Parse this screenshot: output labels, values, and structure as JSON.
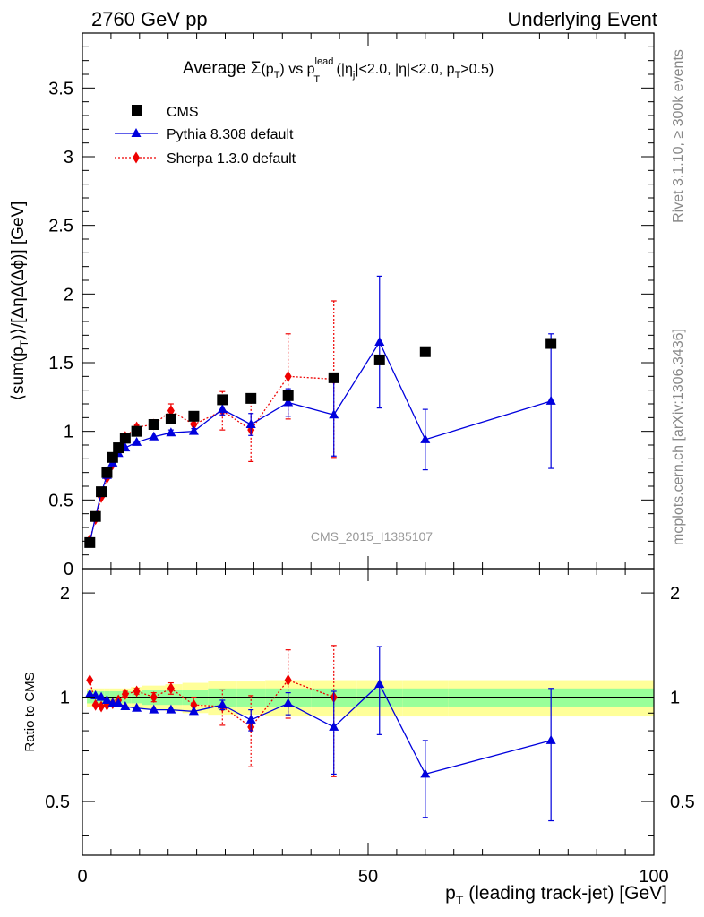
{
  "header": {
    "left": "2760 GeV pp",
    "right": "Underlying Event"
  },
  "title": {
    "prefix": "Average ",
    "sigma": "Σ",
    "pt_open": "(p",
    "t_sub": "T",
    "pt_close": ")",
    "vs": " vs p",
    "lead_sup": "lead",
    "t_sub2": "T",
    "cuts_a": " (|η",
    "j_sub": "j",
    "cuts_b": "|<2.0, |η|<2.0, p",
    "t_sub3": "T",
    "cuts_c": ">0.5)"
  },
  "side_labels": {
    "rivet": "Rivet 3.1.10, ≥ 300k events",
    "mcplots": "mcplots.cern.ch [arXiv:1306.3436]"
  },
  "watermark": "CMS_2015_I1385107",
  "axes": {
    "ylabel_main": "⟨sum(p_T)⟩/[ΔηΔ(Δϕ)] [GeV]",
    "ylabel_main_parts": {
      "a": "⟨sum(p",
      "sub": "T",
      "b": ")⟩/[ΔηΔ(Δϕ)] [GeV]"
    },
    "ylabel_ratio": "Ratio to CMS",
    "xlabel_parts": {
      "a": "p",
      "sub": "T",
      "b": " (leading track-jet) [GeV]"
    }
  },
  "legend": {
    "cms": "CMS",
    "pythia": "Pythia 8.308 default",
    "sherpa": "Sherpa 1.3.0 default"
  },
  "colors": {
    "cms": "#000000",
    "pythia": "#0000dd",
    "sherpa": "#ee0000",
    "band_inner": "#99ff99",
    "band_outer": "#ffff99",
    "watermark": "#999999",
    "side_text": "#888888"
  },
  "chart_data": [
    {
      "type": "scatter",
      "panel": "main",
      "xlim": [
        0,
        100
      ],
      "ylim": [
        0,
        3.9
      ],
      "yticks": [
        0,
        0.5,
        1,
        1.5,
        2,
        2.5,
        3,
        3.5
      ],
      "ytick_labels": [
        "0",
        "0.5",
        "1",
        "1.5",
        "2",
        "2.5",
        "3",
        "3.5"
      ],
      "series": [
        {
          "name": "CMS",
          "marker": "square",
          "x": [
            1.3,
            2.3,
            3.3,
            4.3,
            5.3,
            6.3,
            7.5,
            9.5,
            12.5,
            15.5,
            19.5,
            24.5,
            29.5,
            36,
            44,
            52,
            60,
            82
          ],
          "y": [
            0.19,
            0.38,
            0.56,
            0.7,
            0.81,
            0.88,
            0.95,
            1.0,
            1.05,
            1.09,
            1.11,
            1.23,
            1.24,
            1.26,
            1.39,
            1.52,
            1.58,
            1.64
          ]
        },
        {
          "name": "Pythia 8.308 default",
          "marker": "triangle",
          "x": [
            1.3,
            2.3,
            3.3,
            4.3,
            5.3,
            6.3,
            7.5,
            9.5,
            12.5,
            15.5,
            19.5,
            24.5,
            29.5,
            36,
            44,
            52,
            60,
            82
          ],
          "y": [
            0.19,
            0.38,
            0.55,
            0.68,
            0.77,
            0.84,
            0.88,
            0.92,
            0.96,
            0.99,
            1.0,
            1.16,
            1.05,
            1.21,
            1.12,
            1.65,
            0.94,
            1.22
          ],
          "err": [
            0.01,
            0.01,
            0.01,
            0.01,
            0.01,
            0.01,
            0.01,
            0.01,
            0.01,
            0.02,
            0.02,
            0.04,
            0.08,
            0.1,
            0.3,
            0.48,
            0.22,
            0.49
          ]
        },
        {
          "name": "Sherpa 1.3.0 default",
          "marker": "diamond",
          "x": [
            1.3,
            2.3,
            3.3,
            4.3,
            5.3,
            6.3,
            7.5,
            9.5,
            12.5,
            15.5,
            19.5,
            24.5,
            29.5,
            36,
            44
          ],
          "y": [
            0.21,
            0.36,
            0.52,
            0.66,
            0.76,
            0.86,
            0.96,
            1.03,
            1.05,
            1.15,
            1.05,
            1.15,
            1.01,
            1.4,
            1.38
          ],
          "err": [
            0.01,
            0.01,
            0.01,
            0.01,
            0.01,
            0.01,
            0.02,
            0.02,
            0.03,
            0.05,
            0.05,
            0.14,
            0.23,
            0.31,
            0.57
          ]
        }
      ]
    },
    {
      "type": "scatter",
      "panel": "ratio",
      "xlim": [
        0,
        100
      ],
      "ylim": [
        0.35,
        2.35
      ],
      "yticks": [
        0.5,
        1,
        2
      ],
      "ytick_labels": [
        "0.5",
        "1",
        "2"
      ],
      "xticks": [
        0,
        50,
        100
      ],
      "xtick_labels": [
        "0",
        "50",
        "100"
      ],
      "band": {
        "x_edges": [
          0.8,
          1.8,
          2.8,
          3.8,
          4.8,
          5.8,
          6.8,
          8.5,
          10.5,
          14.5,
          17.5,
          22,
          27,
          32,
          40,
          48,
          56,
          64,
          100
        ],
        "inner": [
          0.04,
          0.04,
          0.04,
          0.04,
          0.04,
          0.04,
          0.04,
          0.04,
          0.05,
          0.05,
          0.05,
          0.06,
          0.06,
          0.06,
          0.06,
          0.06,
          0.06,
          0.06
        ],
        "outer": [
          0.06,
          0.06,
          0.06,
          0.06,
          0.06,
          0.06,
          0.06,
          0.07,
          0.08,
          0.09,
          0.1,
          0.11,
          0.11,
          0.12,
          0.12,
          0.12,
          0.12,
          0.12
        ]
      },
      "series": [
        {
          "name": "Pythia 8.308 default",
          "marker": "triangle",
          "x": [
            1.3,
            2.3,
            3.3,
            4.3,
            5.3,
            6.3,
            7.5,
            9.5,
            12.5,
            15.5,
            19.5,
            24.5,
            29.5,
            36,
            44,
            52,
            60,
            82
          ],
          "y": [
            1.02,
            1.01,
            1.0,
            0.98,
            0.96,
            0.96,
            0.94,
            0.93,
            0.92,
            0.92,
            0.91,
            0.95,
            0.86,
            0.96,
            0.82,
            1.09,
            0.6,
            0.75
          ],
          "err": [
            0.01,
            0.01,
            0.01,
            0.01,
            0.01,
            0.01,
            0.01,
            0.01,
            0.01,
            0.01,
            0.01,
            0.03,
            0.06,
            0.07,
            0.22,
            0.31,
            0.15,
            0.31
          ]
        },
        {
          "name": "Sherpa 1.3.0 default",
          "marker": "diamond",
          "x": [
            1.3,
            2.3,
            3.3,
            4.3,
            5.3,
            6.3,
            7.5,
            9.5,
            12.5,
            15.5,
            19.5,
            24.5,
            29.5,
            36,
            44
          ],
          "y": [
            1.12,
            0.95,
            0.94,
            0.95,
            0.96,
            0.98,
            1.02,
            1.04,
            1.0,
            1.06,
            0.95,
            0.94,
            0.82,
            1.12,
            1.0
          ],
          "err": [
            0.01,
            0.01,
            0.01,
            0.01,
            0.01,
            0.01,
            0.02,
            0.02,
            0.03,
            0.04,
            0.05,
            0.11,
            0.19,
            0.25,
            0.41
          ]
        }
      ]
    }
  ]
}
